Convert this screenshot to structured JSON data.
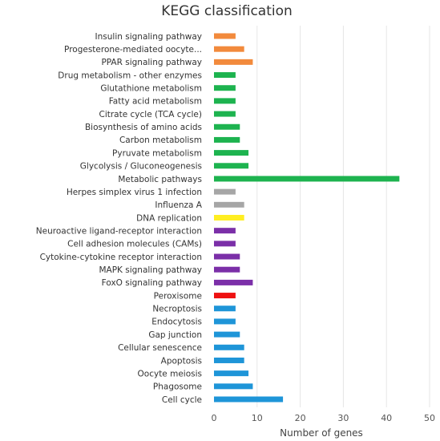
{
  "chart_data": {
    "type": "bar",
    "orientation": "horizontal",
    "title": "KEGG classification",
    "xlabel": "Number of genes",
    "ylabel": "",
    "xlim": [
      0,
      50
    ],
    "xticks": [
      0,
      10,
      20,
      30,
      40,
      50
    ],
    "grid": "vertical",
    "legend": "none",
    "bars": [
      {
        "label": "Insulin signaling pathway",
        "value": 5,
        "color": "#f28a3c"
      },
      {
        "label": "Progesterone-mediated oocyte...",
        "value": 7,
        "color": "#f28a3c"
      },
      {
        "label": "PPAR signaling pathway",
        "value": 9,
        "color": "#f28a3c"
      },
      {
        "label": "Drug metabolism - other enzymes",
        "value": 5,
        "color": "#1db34f"
      },
      {
        "label": "Glutathione metabolism",
        "value": 5,
        "color": "#1db34f"
      },
      {
        "label": "Fatty acid metabolism",
        "value": 5,
        "color": "#1db34f"
      },
      {
        "label": "Citrate cycle (TCA cycle)",
        "value": 5,
        "color": "#1db34f"
      },
      {
        "label": "Biosynthesis of amino acids",
        "value": 6,
        "color": "#1db34f"
      },
      {
        "label": "Carbon metabolism",
        "value": 6,
        "color": "#1db34f"
      },
      {
        "label": "Pyruvate metabolism",
        "value": 8,
        "color": "#1db34f"
      },
      {
        "label": "Glycolysis / Gluconeogenesis",
        "value": 8,
        "color": "#1db34f"
      },
      {
        "label": "Metabolic pathways",
        "value": 43,
        "color": "#1db34f"
      },
      {
        "label": "Herpes simplex virus 1 infection",
        "value": 5,
        "color": "#a6a6a6"
      },
      {
        "label": "Influenza A",
        "value": 7,
        "color": "#a6a6a6"
      },
      {
        "label": "DNA replication",
        "value": 7,
        "color": "#ffee22"
      },
      {
        "label": "Neuroactive ligand-receptor interaction",
        "value": 5,
        "color": "#7b2fa8"
      },
      {
        "label": "Cell adhesion molecules (CAMs)",
        "value": 5,
        "color": "#7b2fa8"
      },
      {
        "label": "Cytokine-cytokine receptor interaction",
        "value": 6,
        "color": "#7b2fa8"
      },
      {
        "label": "MAPK signaling pathway",
        "value": 6,
        "color": "#7b2fa8"
      },
      {
        "label": "FoxO signaling pathway",
        "value": 9,
        "color": "#7b2fa8"
      },
      {
        "label": "Peroxisome",
        "value": 5,
        "color": "#ee1111"
      },
      {
        "label": "Necroptosis",
        "value": 5,
        "color": "#1e95d8"
      },
      {
        "label": "Endocytosis",
        "value": 5,
        "color": "#1e95d8"
      },
      {
        "label": "Gap junction",
        "value": 6,
        "color": "#1e95d8"
      },
      {
        "label": "Cellular senescence",
        "value": 7,
        "color": "#1e95d8"
      },
      {
        "label": "Apoptosis",
        "value": 7,
        "color": "#1e95d8"
      },
      {
        "label": "Oocyte meiosis",
        "value": 8,
        "color": "#1e95d8"
      },
      {
        "label": "Phagosome",
        "value": 9,
        "color": "#1e95d8"
      },
      {
        "label": "Cell cycle",
        "value": 16,
        "color": "#1e95d8"
      }
    ]
  }
}
